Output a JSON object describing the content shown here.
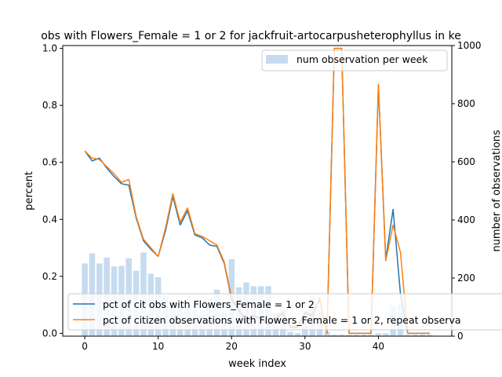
{
  "chart_data": {
    "type": "line",
    "title": "obs with Flowers_Female = 1 or 2 for jackfruit-artocarpusheterophyllus in ke",
    "xlabel": "week index",
    "ylabel": "percent",
    "y2label": "number of observations",
    "xlim": [
      -3,
      50
    ],
    "ylim": [
      -0.01,
      1.01
    ],
    "y2lim": [
      0,
      1000
    ],
    "xticks": [
      0,
      10,
      20,
      30,
      40
    ],
    "xtick_labels": [
      "0",
      "10",
      "20",
      "30",
      "40"
    ],
    "yticks": [
      0.0,
      0.2,
      0.4,
      0.6,
      0.8,
      1.0
    ],
    "ytick_labels": [
      "0.0",
      "0.2",
      "0.4",
      "0.6",
      "0.8",
      "1.0"
    ],
    "y2ticks": [
      0,
      200,
      400,
      600,
      800,
      1000
    ],
    "y2tick_labels": [
      "0",
      "200",
      "400",
      "600",
      "800",
      "1000"
    ],
    "bars": {
      "name": "num observation per week",
      "color": "#c6dbef",
      "x": [
        0,
        1,
        2,
        3,
        4,
        5,
        6,
        7,
        8,
        9,
        10,
        11,
        12,
        13,
        14,
        15,
        16,
        17,
        18,
        19,
        20,
        21,
        22,
        23,
        24,
        25,
        26,
        27,
        28,
        29,
        30,
        31,
        32,
        33,
        34,
        35,
        36,
        37,
        38,
        39,
        40,
        41,
        42,
        43,
        44,
        45,
        46,
        47
      ],
      "values": [
        250,
        285,
        250,
        270,
        240,
        242,
        268,
        225,
        288,
        215,
        203,
        138,
        120,
        100,
        95,
        90,
        88,
        130,
        160,
        80,
        265,
        168,
        185,
        172,
        172,
        172,
        80,
        92,
        15,
        10,
        60,
        140,
        90,
        15,
        5,
        5,
        5,
        5,
        5,
        5,
        10,
        10,
        105,
        110,
        5,
        5,
        5,
        5
      ]
    },
    "series": [
      {
        "name": "pct of cit obs with Flowers_Female = 1 or 2",
        "color": "#1f77b4",
        "x": [
          0,
          1,
          2,
          3,
          4,
          5,
          6,
          7,
          8,
          9,
          10,
          11,
          12,
          13,
          14,
          15,
          16,
          17,
          18,
          19,
          20,
          21,
          22,
          23,
          24,
          25,
          26,
          27,
          28,
          29,
          30,
          31,
          32,
          33,
          34,
          35,
          36,
          37,
          38,
          39,
          40,
          41,
          42,
          43,
          44,
          45,
          46,
          47
        ],
        "values": [
          0.64,
          0.605,
          0.615,
          0.58,
          0.55,
          0.525,
          0.52,
          0.405,
          0.325,
          0.295,
          0.27,
          0.36,
          0.48,
          0.38,
          0.43,
          0.345,
          0.335,
          0.31,
          0.305,
          0.245,
          0.12,
          0.08,
          0.04,
          0.06,
          0.05,
          0.03,
          0.05,
          0.07,
          0.02,
          0.02,
          0.07,
          0.06,
          0.12,
          0.0,
          1.0,
          1.0,
          0.0,
          0.0,
          0.0,
          0.0,
          0.87,
          0.26,
          0.435,
          0.14,
          0.0,
          0.0,
          0.0,
          0.0
        ]
      },
      {
        "name": "pct of citizen observations with Flowers_Female = 1 or 2, repeat observa",
        "color": "#ff7f0e",
        "x": [
          0,
          1,
          2,
          3,
          4,
          5,
          6,
          7,
          8,
          9,
          10,
          11,
          12,
          13,
          14,
          15,
          16,
          17,
          18,
          19,
          20,
          21,
          22,
          23,
          24,
          25,
          26,
          27,
          28,
          29,
          30,
          31,
          32,
          33,
          34,
          35,
          36,
          37,
          38,
          39,
          40,
          41,
          42,
          43,
          44,
          45,
          46,
          47
        ],
        "values": [
          0.64,
          0.615,
          0.61,
          0.585,
          0.56,
          0.53,
          0.54,
          0.41,
          0.33,
          0.3,
          0.27,
          0.37,
          0.49,
          0.39,
          0.44,
          0.35,
          0.34,
          0.325,
          0.31,
          0.25,
          0.125,
          0.085,
          0.045,
          0.065,
          0.055,
          0.035,
          0.055,
          0.075,
          0.025,
          0.025,
          0.075,
          0.065,
          0.125,
          0.0,
          1.0,
          1.0,
          0.0,
          0.0,
          0.0,
          0.0,
          0.875,
          0.255,
          0.38,
          0.285,
          0.0,
          0.0,
          0.0,
          0.0
        ]
      }
    ],
    "legend_upper": "upper-right",
    "legend_lower": "lower-right",
    "grid": false
  }
}
